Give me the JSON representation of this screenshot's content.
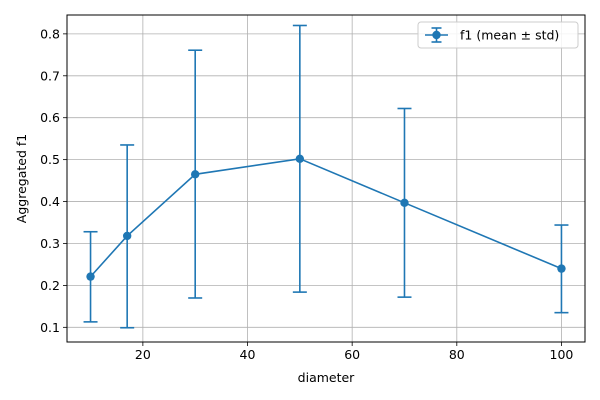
{
  "chart_data": {
    "type": "line",
    "title": "",
    "xlabel": "diameter",
    "ylabel": "Aggregated f1",
    "xlim": [
      5.5,
      104.5
    ],
    "ylim": [
      0.065,
      0.845
    ],
    "xticks": [
      20,
      40,
      60,
      80,
      100
    ],
    "yticks": [
      0.1,
      0.2,
      0.3,
      0.4,
      0.5,
      0.6,
      0.7,
      0.8
    ],
    "grid": true,
    "legend_position": "top-right",
    "series": [
      {
        "name": "f1 (mean ± std)",
        "color": "#1f77b4",
        "marker": "circle",
        "error_bars": true,
        "x": [
          10,
          17,
          30,
          50,
          70,
          100
        ],
        "y": [
          0.221,
          0.318,
          0.465,
          0.502,
          0.397,
          0.24
        ],
        "yerr_low": [
          0.113,
          0.099,
          0.17,
          0.184,
          0.172,
          0.135
        ],
        "yerr_high": [
          0.328,
          0.535,
          0.761,
          0.82,
          0.622,
          0.344
        ]
      }
    ]
  }
}
